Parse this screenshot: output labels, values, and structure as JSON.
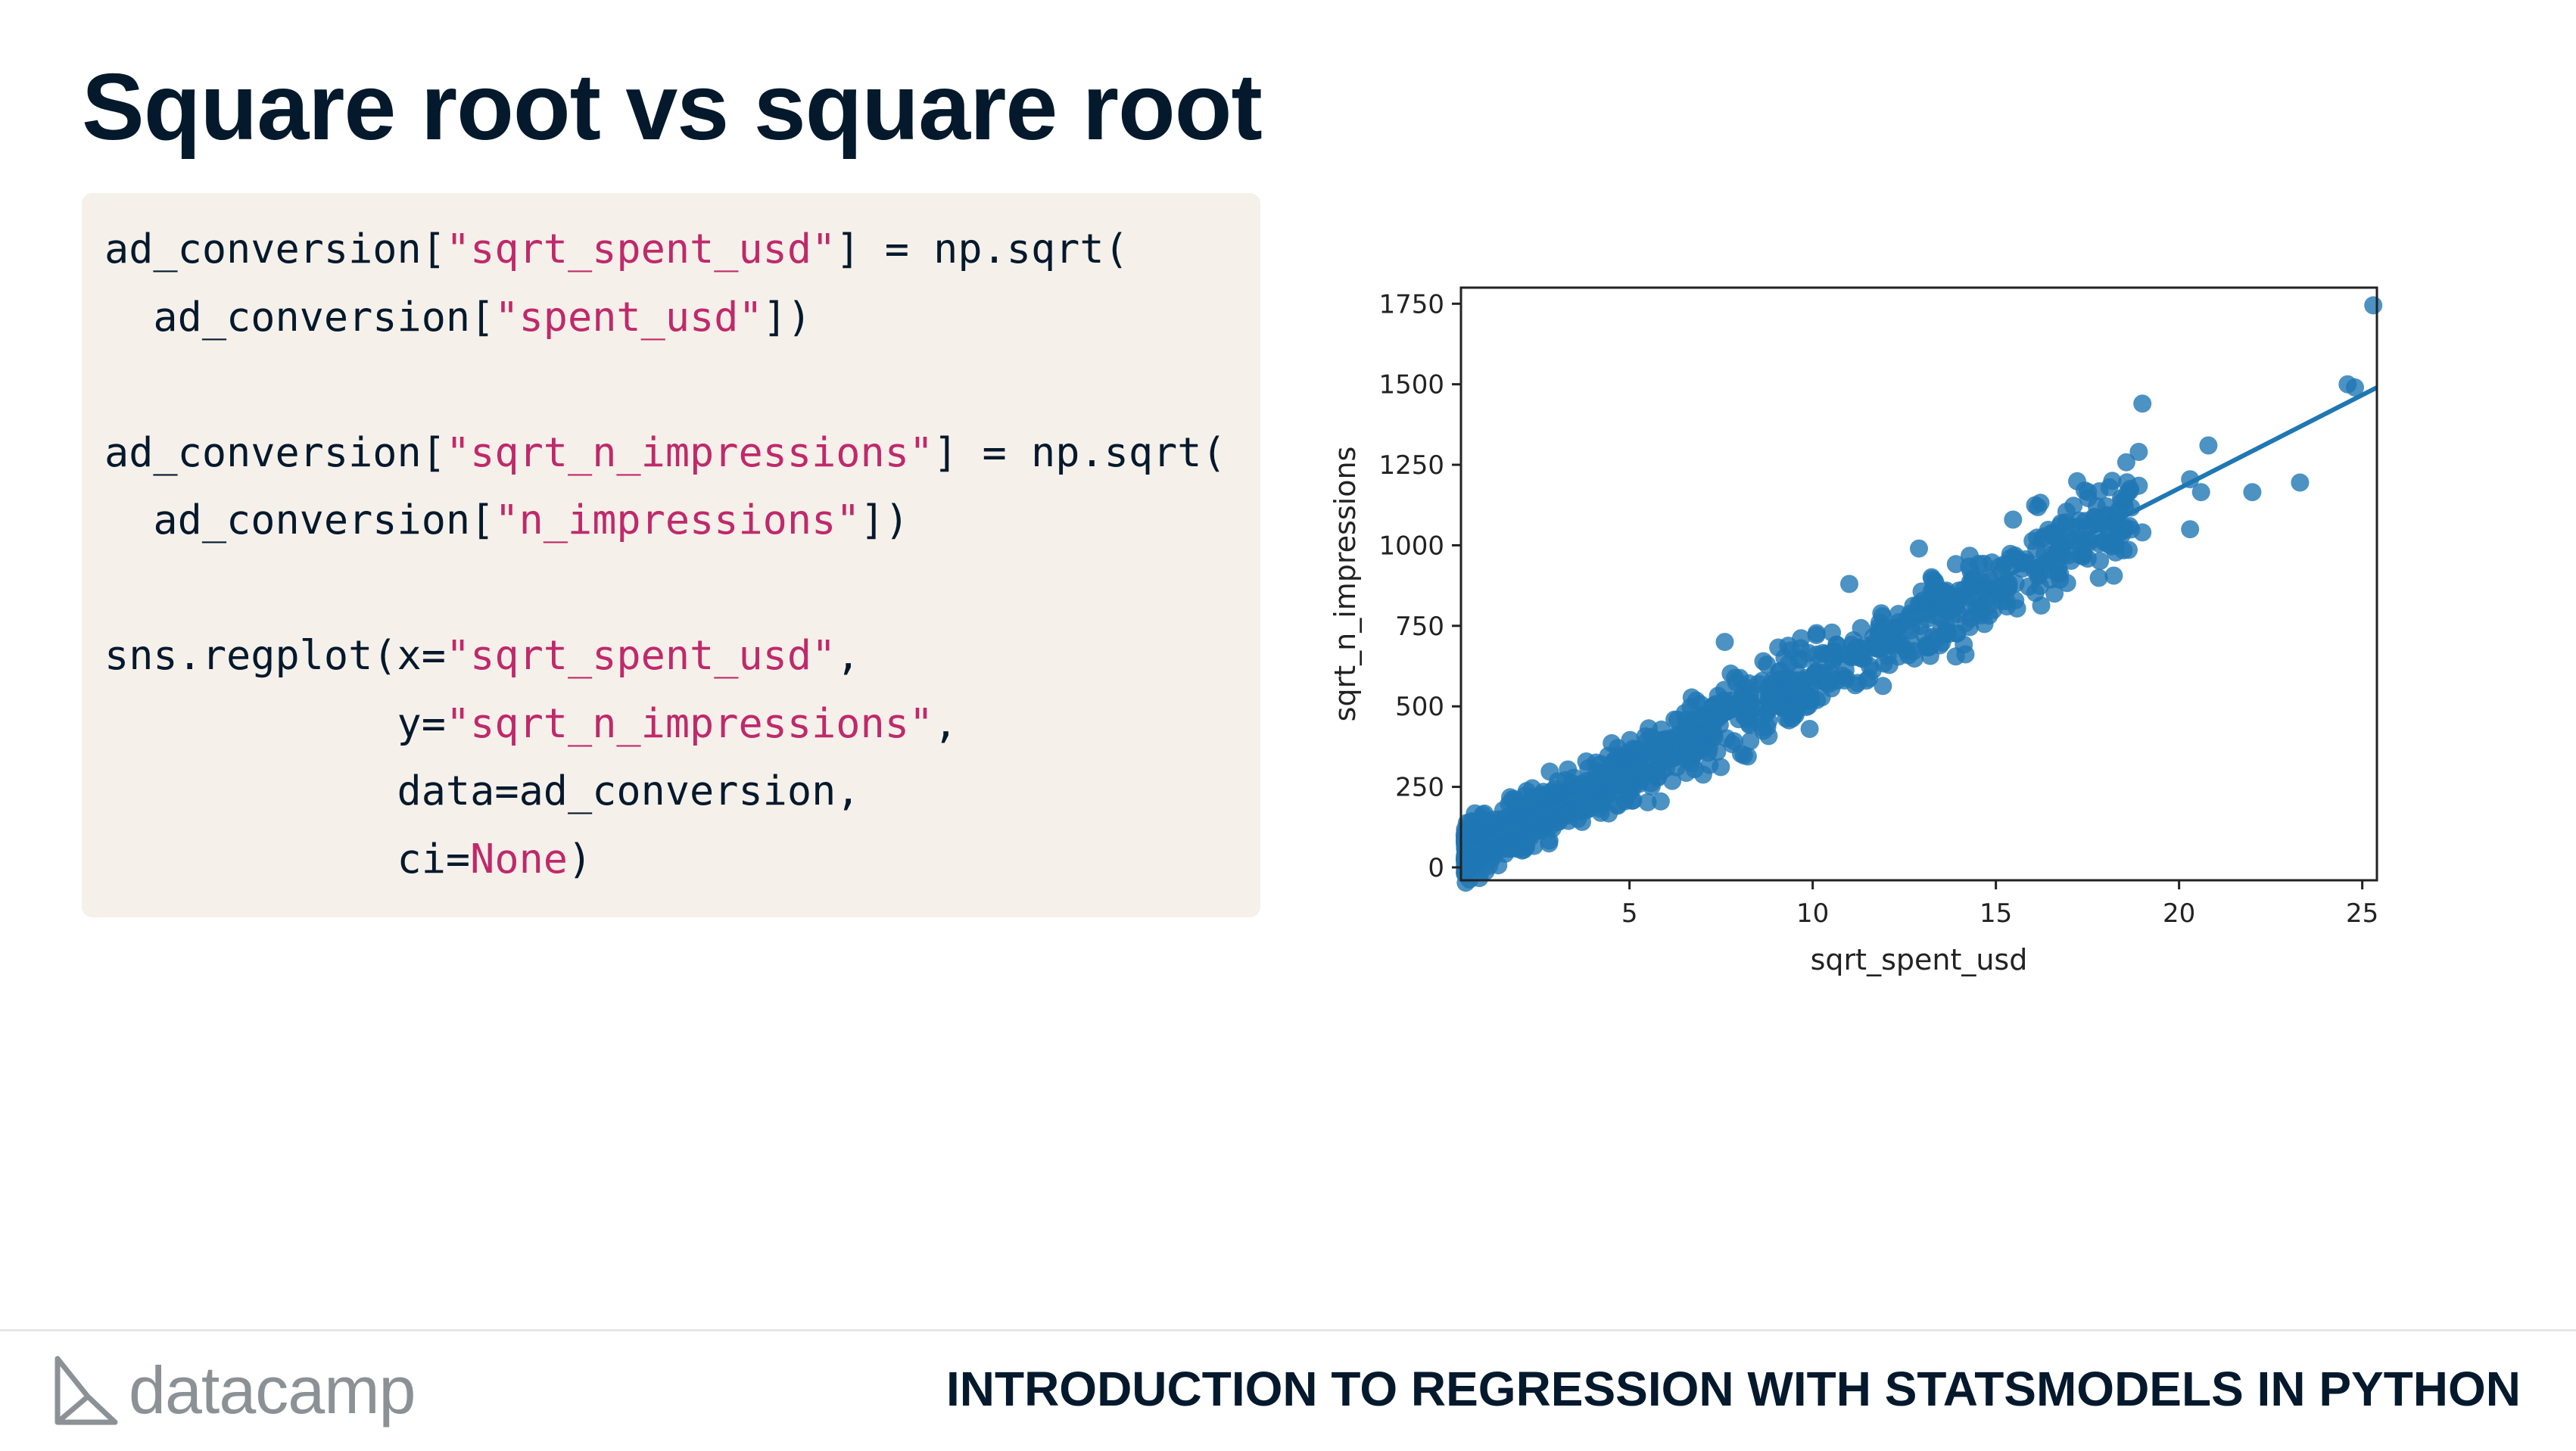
{
  "title": "Square root vs square root",
  "code": {
    "lines": [
      [
        {
          "t": "ad_conversion[",
          "c": "d"
        },
        {
          "t": "\"sqrt_spent_usd\"",
          "c": "s"
        },
        {
          "t": "] = np.sqrt(",
          "c": "d"
        }
      ],
      [
        {
          "t": "  ad_conversion[",
          "c": "d"
        },
        {
          "t": "\"spent_usd\"",
          "c": "s"
        },
        {
          "t": "])",
          "c": "d"
        }
      ],
      [],
      [
        {
          "t": "ad_conversion[",
          "c": "d"
        },
        {
          "t": "\"sqrt_n_impressions\"",
          "c": "s"
        },
        {
          "t": "] = np.sqrt(",
          "c": "d"
        }
      ],
      [
        {
          "t": "  ad_conversion[",
          "c": "d"
        },
        {
          "t": "\"n_impressions\"",
          "c": "s"
        },
        {
          "t": "])",
          "c": "d"
        }
      ],
      [],
      [
        {
          "t": "sns.regplot(x=",
          "c": "d"
        },
        {
          "t": "\"sqrt_spent_usd\"",
          "c": "s"
        },
        {
          "t": ",",
          "c": "d"
        }
      ],
      [
        {
          "t": "            y=",
          "c": "d"
        },
        {
          "t": "\"sqrt_n_impressions\"",
          "c": "s"
        },
        {
          "t": ",",
          "c": "d"
        }
      ],
      [
        {
          "t": "            data=ad_conversion,",
          "c": "d"
        }
      ],
      [
        {
          "t": "            ci=",
          "c": "d"
        },
        {
          "t": "None",
          "c": "s"
        },
        {
          "t": ")",
          "c": "d"
        }
      ]
    ]
  },
  "chart_data": {
    "type": "scatter",
    "xlabel": "sqrt_spent_usd",
    "ylabel": "sqrt_n_impressions",
    "xlim": [
      0.4,
      25.4
    ],
    "ylim": [
      -40,
      1800
    ],
    "xticks": [
      5,
      10,
      15,
      20,
      25
    ],
    "yticks": [
      0,
      250,
      500,
      750,
      1000,
      1250,
      1500,
      1750
    ],
    "grid": false,
    "point_color": "#1f77b4",
    "regression_line": {
      "x": [
        0.4,
        25.4
      ],
      "y": [
        40,
        1490
      ]
    },
    "highlight_points": [
      {
        "x": 25.3,
        "y": 1745
      },
      {
        "x": 24.6,
        "y": 1500
      },
      {
        "x": 24.8,
        "y": 1490
      },
      {
        "x": 19.0,
        "y": 1440
      },
      {
        "x": 18.9,
        "y": 1290
      },
      {
        "x": 20.8,
        "y": 1310
      },
      {
        "x": 23.3,
        "y": 1195
      },
      {
        "x": 22.0,
        "y": 1165
      },
      {
        "x": 20.6,
        "y": 1165
      },
      {
        "x": 20.3,
        "y": 1205
      },
      {
        "x": 18.9,
        "y": 1185
      },
      {
        "x": 18.1,
        "y": 1180
      },
      {
        "x": 20.3,
        "y": 1050
      },
      {
        "x": 19.0,
        "y": 1040
      },
      {
        "x": 16.6,
        "y": 850
      },
      {
        "x": 13.8,
        "y": 780
      },
      {
        "x": 12.9,
        "y": 990
      },
      {
        "x": 11.0,
        "y": 880
      },
      {
        "x": 7.6,
        "y": 700
      }
    ],
    "cloud": {
      "n": 1140,
      "x_range": [
        0.5,
        18.7
      ],
      "slope": 58,
      "intercept": 16,
      "noise_sd": 38,
      "seed": 7
    }
  },
  "footer": {
    "logo_text": "datacamp",
    "course_title": "INTRODUCTION TO REGRESSION WITH STATSMODELS IN PYTHON"
  }
}
